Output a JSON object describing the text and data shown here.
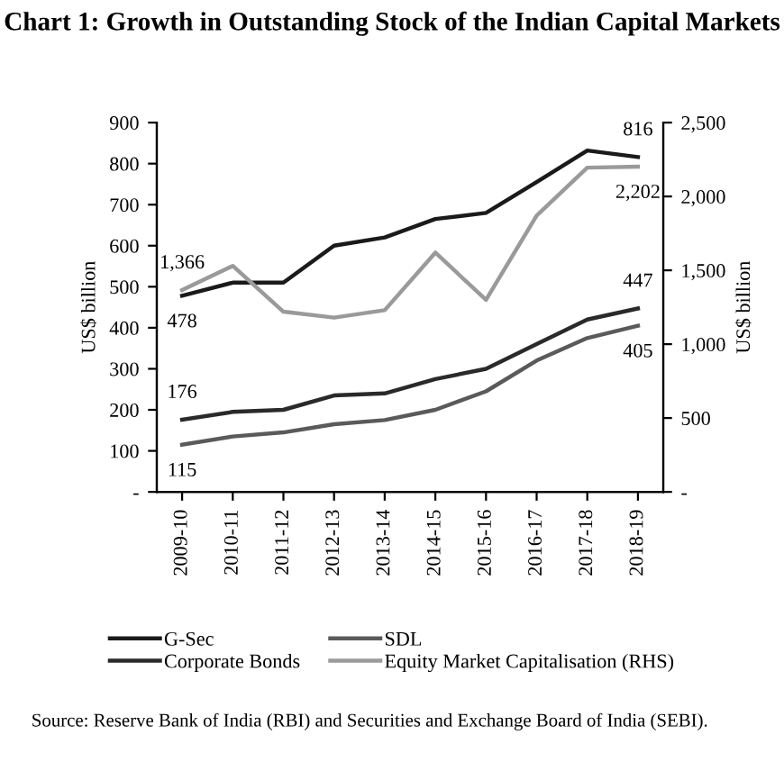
{
  "chart_data": {
    "type": "line",
    "title": "Chart 1: Growth in Outstanding Stock of the Indian Capital Markets",
    "ylabel": "US$ billion",
    "y2label": "US$ billion",
    "categories": [
      "2009-10",
      "2010-11",
      "2011-12",
      "2012-13",
      "2013-14",
      "2014-15",
      "2015-16",
      "2016-17",
      "2017-18",
      "2018-19"
    ],
    "series": [
      {
        "name": "G-Sec",
        "color": "#1a1a1a",
        "values": [
          478,
          510,
          510,
          600,
          620,
          665,
          680,
          755,
          832,
          816
        ],
        "value_labels": [
          "478",
          null,
          null,
          null,
          null,
          null,
          null,
          null,
          null,
          "816"
        ]
      },
      {
        "name": "Corporate Bonds",
        "color": "#2a2a2a",
        "values": [
          176,
          195,
          200,
          235,
          240,
          275,
          300,
          360,
          420,
          447
        ],
        "value_labels": [
          "176",
          null,
          null,
          null,
          null,
          null,
          null,
          null,
          null,
          "447"
        ]
      },
      {
        "name": "SDL",
        "color": "#5a5a5a",
        "values": [
          115,
          135,
          145,
          165,
          175,
          200,
          245,
          320,
          375,
          405
        ],
        "value_labels": [
          "115",
          null,
          null,
          null,
          null,
          null,
          null,
          null,
          null,
          "405"
        ]
      },
      {
        "name": "Equity Market Capitalisation (RHS)",
        "color": "#9a9a9a",
        "axis": "y2",
        "values": [
          1366,
          1530,
          1220,
          1180,
          1230,
          1620,
          1300,
          1870,
          2195,
          2202
        ],
        "value_labels": [
          "1,366",
          null,
          null,
          null,
          null,
          null,
          null,
          null,
          null,
          "2,202"
        ]
      }
    ],
    "ylim": [
      0,
      900
    ],
    "yticks": [
      {
        "value": 0,
        "label": "-"
      },
      100,
      200,
      300,
      400,
      500,
      600,
      700,
      800,
      900
    ],
    "y2lim": [
      0,
      2500
    ],
    "y2ticks": [
      {
        "value": 0,
        "label": "-"
      },
      {
        "value": 500,
        "label": "500"
      },
      {
        "value": 1000,
        "label": "1,000"
      },
      {
        "value": 1500,
        "label": "1,500"
      },
      {
        "value": 2000,
        "label": "2,000"
      },
      {
        "value": 2500,
        "label": "2,500"
      }
    ],
    "grid": false,
    "legend": "bottom",
    "marker": "none",
    "line_style": "solid",
    "annotations": [
      "Source: Reserve Bank of India (RBI) and Securities and Exchange Board of India (SEBI)."
    ]
  }
}
